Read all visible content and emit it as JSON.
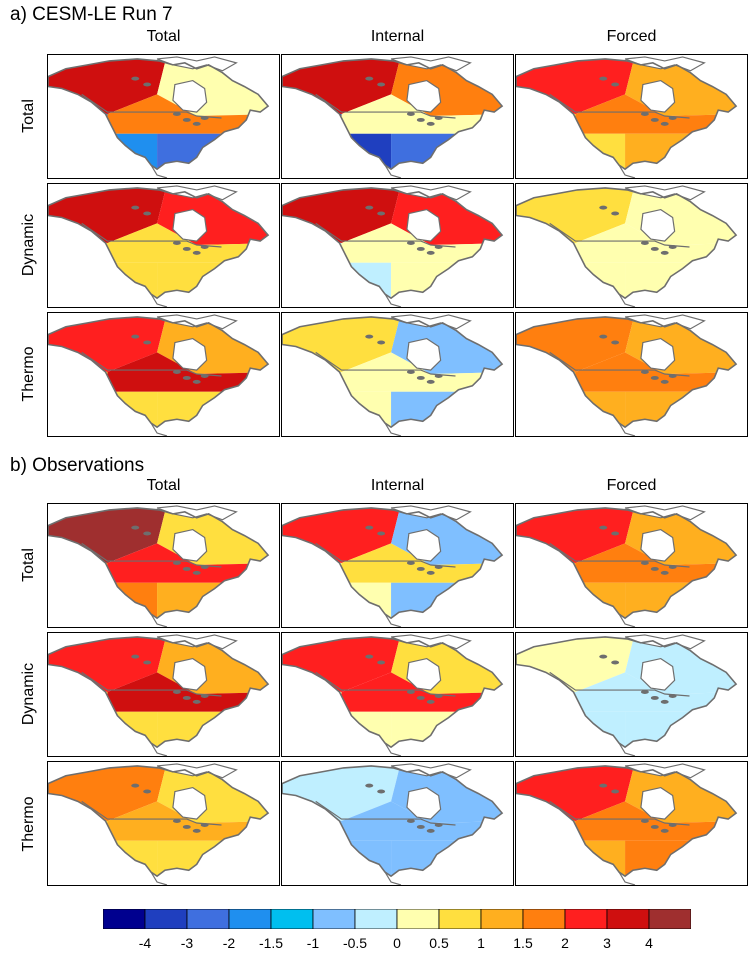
{
  "chart_data": {
    "type": "heatmap",
    "sections": [
      {
        "title": "a) CESM-LE Run 7",
        "columns": [
          "Total",
          "Internal",
          "Forced"
        ],
        "rows": [
          "Total",
          "Dynamic",
          "Thermo"
        ]
      },
      {
        "title": "b) Observations",
        "columns": [
          "Total",
          "Internal",
          "Forced"
        ],
        "rows": [
          "Total",
          "Dynamic",
          "Thermo"
        ]
      }
    ],
    "colorbar": {
      "tick_labels": [
        "-4",
        "-3",
        "-2",
        "-1.5",
        "-1",
        "-0.5",
        "0",
        "0.5",
        "1",
        "1.5",
        "2",
        "3",
        "4"
      ],
      "colors": [
        "#00008f",
        "#1f3fbf",
        "#3f6fdf",
        "#1f8fef",
        "#00bfef",
        "#7fbfff",
        "#bfefff",
        "#ffffaf",
        "#ffdf3f",
        "#ffaf1f",
        "#ff7f0f",
        "#ff1f1f",
        "#cf0f0f",
        "#9f2f2f"
      ]
    },
    "panel_fields": [
      [
        [
          12,
          7,
          10,
          3,
          2
        ],
        [
          12,
          10,
          7,
          1,
          2
        ],
        [
          11,
          9,
          10,
          8,
          9
        ]
      ],
      [
        [
          12,
          11,
          8,
          8,
          8
        ],
        [
          12,
          11,
          7,
          6,
          7
        ],
        [
          8,
          7,
          7,
          7,
          7
        ]
      ],
      [
        [
          11,
          9,
          12,
          8,
          8
        ],
        [
          8,
          5,
          7,
          7,
          5
        ],
        [
          10,
          9,
          10,
          9,
          9
        ]
      ],
      [
        [
          13,
          8,
          11,
          10,
          9
        ],
        [
          11,
          5,
          8,
          7,
          5
        ],
        [
          11,
          9,
          10,
          9,
          9
        ]
      ],
      [
        [
          11,
          9,
          12,
          8,
          8
        ],
        [
          11,
          8,
          11,
          7,
          7
        ],
        [
          7,
          6,
          6,
          6,
          6
        ]
      ],
      [
        [
          10,
          8,
          9,
          8,
          8
        ],
        [
          6,
          5,
          5,
          5,
          5
        ],
        [
          11,
          9,
          10,
          9,
          10
        ]
      ]
    ]
  }
}
